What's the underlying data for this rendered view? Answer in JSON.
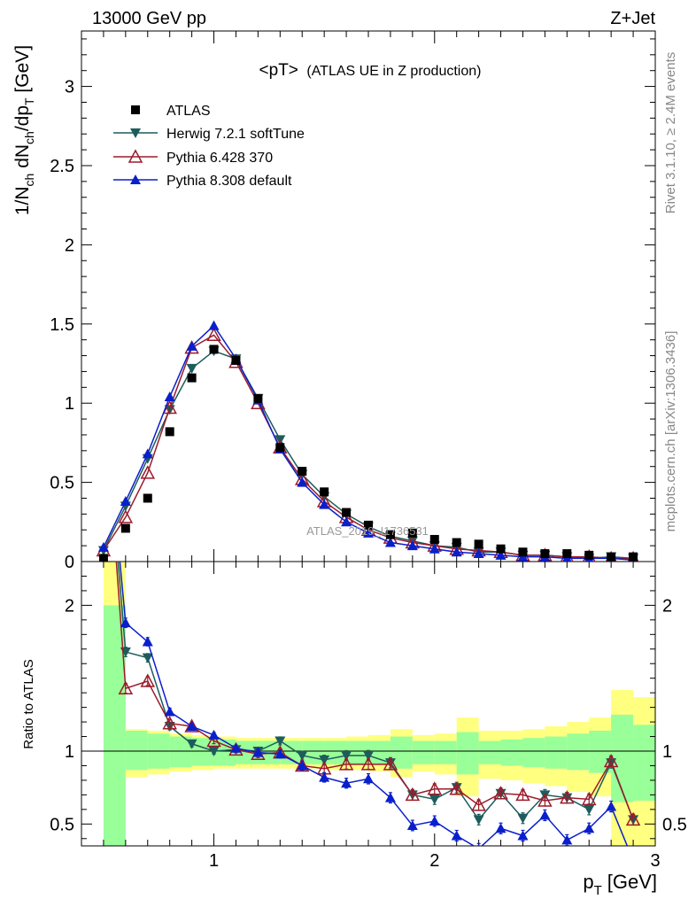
{
  "header": {
    "left": "13000 GeV pp",
    "right": "Z+Jet"
  },
  "side_labels": {
    "right_top": "Rivet 3.1.10, ≥ 2.4M events",
    "right_bottom": "mcplots.cern.ch [arXiv:1306.3436]"
  },
  "chart_data": {
    "type": "line",
    "title": "<pT> (ATLAS UE in Z production)",
    "title_main": "<pT>",
    "title_sub": "(ATLAS UE in Z production)",
    "watermark": "ATLAS_2019_I1736531",
    "xlabel": "p_T [GeV]",
    "xlabel_main": "p",
    "xlabel_sub": "T",
    "xlabel_unit": "[GeV]",
    "ylabel": "1/N_ch dN_ch/dp_T [GeV]",
    "ratio_ylabel": "Ratio to ATLAS",
    "xlim": [
      0.4,
      3.0
    ],
    "ylim": [
      0,
      3.35
    ],
    "ratio_ylim": [
      0.35,
      2.3
    ],
    "xticks": [
      1,
      2,
      3
    ],
    "yticks": [
      0,
      0.5,
      1,
      1.5,
      2,
      2.5,
      3
    ],
    "ratio_yticks": [
      0.5,
      1,
      2
    ],
    "bin_edges": [
      0.5,
      0.6,
      0.7,
      0.8,
      0.9,
      1.0,
      1.1,
      1.2,
      1.3,
      1.4,
      1.5,
      1.6,
      1.7,
      1.8,
      1.9,
      2.0,
      2.1,
      2.2,
      2.3,
      2.4,
      2.5,
      2.6,
      2.7,
      2.8,
      2.9,
      3.0
    ],
    "x": [
      0.5,
      0.6,
      0.7,
      0.8,
      0.9,
      1.0,
      1.1,
      1.2,
      1.3,
      1.4,
      1.5,
      1.6,
      1.7,
      1.8,
      1.9,
      2.0,
      2.1,
      2.2,
      2.3,
      2.4,
      2.5,
      2.6,
      2.7,
      2.8,
      2.9
    ],
    "ratio_band_stat": [
      [
        0.33,
        2.0
      ],
      [
        0.87,
        1.14
      ],
      [
        0.88,
        1.12
      ],
      [
        0.89,
        1.1
      ],
      [
        0.9,
        1.09
      ],
      [
        0.9,
        1.08
      ],
      [
        0.91,
        1.07
      ],
      [
        0.91,
        1.07
      ],
      [
        0.91,
        1.07
      ],
      [
        0.91,
        1.07
      ],
      [
        0.91,
        1.07
      ],
      [
        0.91,
        1.07
      ],
      [
        0.91,
        1.07
      ],
      [
        0.88,
        1.1
      ],
      [
        0.91,
        1.07
      ],
      [
        0.91,
        1.07
      ],
      [
        0.84,
        1.13
      ],
      [
        0.91,
        1.07
      ],
      [
        0.9,
        1.08
      ],
      [
        0.89,
        1.09
      ],
      [
        0.88,
        1.1
      ],
      [
        0.87,
        1.12
      ],
      [
        0.85,
        1.14
      ],
      [
        0.65,
        1.25
      ],
      [
        0.66,
        1.18
      ]
    ],
    "ratio_band_total": [
      [
        0.33,
        2.3
      ],
      [
        0.82,
        1.15
      ],
      [
        0.84,
        1.14
      ],
      [
        0.86,
        1.12
      ],
      [
        0.87,
        1.11
      ],
      [
        0.88,
        1.1
      ],
      [
        0.88,
        1.09
      ],
      [
        0.88,
        1.09
      ],
      [
        0.88,
        1.09
      ],
      [
        0.88,
        1.09
      ],
      [
        0.87,
        1.09
      ],
      [
        0.87,
        1.1
      ],
      [
        0.86,
        1.11
      ],
      [
        0.82,
        1.15
      ],
      [
        0.86,
        1.11
      ],
      [
        0.84,
        1.12
      ],
      [
        0.69,
        1.23
      ],
      [
        0.81,
        1.14
      ],
      [
        0.8,
        1.14
      ],
      [
        0.78,
        1.15
      ],
      [
        0.76,
        1.17
      ],
      [
        0.72,
        1.2
      ],
      [
        0.69,
        1.23
      ],
      [
        0.33,
        1.42
      ],
      [
        0.33,
        1.37
      ]
    ],
    "series": [
      {
        "name": "ATLAS",
        "color": "#000000",
        "marker": "square",
        "values": [
          0.02,
          0.21,
          0.4,
          0.82,
          1.16,
          1.34,
          1.27,
          1.03,
          0.72,
          0.57,
          0.44,
          0.31,
          0.23,
          0.17,
          0.18,
          0.14,
          0.12,
          0.11,
          0.08,
          0.06,
          0.05,
          0.05,
          0.04,
          0.03,
          0.03
        ]
      },
      {
        "name": "Herwig 7.2.1 softTune",
        "color": "#1e5c5c",
        "marker": "triangle-down",
        "values": [
          0.07,
          0.35,
          0.65,
          0.96,
          1.22,
          1.33,
          1.28,
          1.03,
          0.77,
          0.55,
          0.41,
          0.3,
          0.22,
          0.16,
          0.13,
          0.1,
          0.09,
          0.06,
          0.06,
          0.04,
          0.04,
          0.03,
          0.02,
          0.03,
          0.02
        ],
        "ratio": [
          3.5,
          1.68,
          1.64,
          1.17,
          1.05,
          1.0,
          1.01,
          1.0,
          1.07,
          0.97,
          0.94,
          0.97,
          0.97,
          0.92,
          0.7,
          0.67,
          0.75,
          0.53,
          0.71,
          0.54,
          0.7,
          0.68,
          0.6,
          0.92,
          0.53
        ]
      },
      {
        "name": "Pythia 6.428 370",
        "color": "#9b1b2b",
        "marker": "triangle-up-open",
        "values": [
          0.07,
          0.28,
          0.56,
          0.97,
          1.35,
          1.43,
          1.26,
          1.0,
          0.72,
          0.52,
          0.38,
          0.28,
          0.2,
          0.15,
          0.12,
          0.1,
          0.08,
          0.07,
          0.06,
          0.04,
          0.04,
          0.03,
          0.03,
          0.02,
          0.02
        ],
        "ratio": [
          3.5,
          1.43,
          1.48,
          1.19,
          1.17,
          1.07,
          1.01,
          0.98,
          0.99,
          0.9,
          0.88,
          0.91,
          0.91,
          0.91,
          0.7,
          0.74,
          0.74,
          0.63,
          0.71,
          0.7,
          0.66,
          0.68,
          0.67,
          0.93,
          0.53
        ]
      },
      {
        "name": "Pythia 8.308 default",
        "color": "#0a1fcc",
        "marker": "triangle-up",
        "values": [
          0.09,
          0.38,
          0.68,
          1.04,
          1.36,
          1.49,
          1.28,
          1.02,
          0.71,
          0.5,
          0.36,
          0.25,
          0.18,
          0.12,
          0.1,
          0.08,
          0.06,
          0.05,
          0.04,
          0.03,
          0.03,
          0.02,
          0.02,
          0.02,
          0.01
        ],
        "ratio": [
          3.5,
          1.88,
          1.75,
          1.27,
          1.17,
          1.11,
          1.02,
          0.99,
          0.98,
          0.9,
          0.82,
          0.78,
          0.81,
          0.68,
          0.49,
          0.52,
          0.42,
          0.33,
          0.47,
          0.42,
          0.56,
          0.39,
          0.47,
          0.62,
          0.25
        ]
      }
    ]
  }
}
